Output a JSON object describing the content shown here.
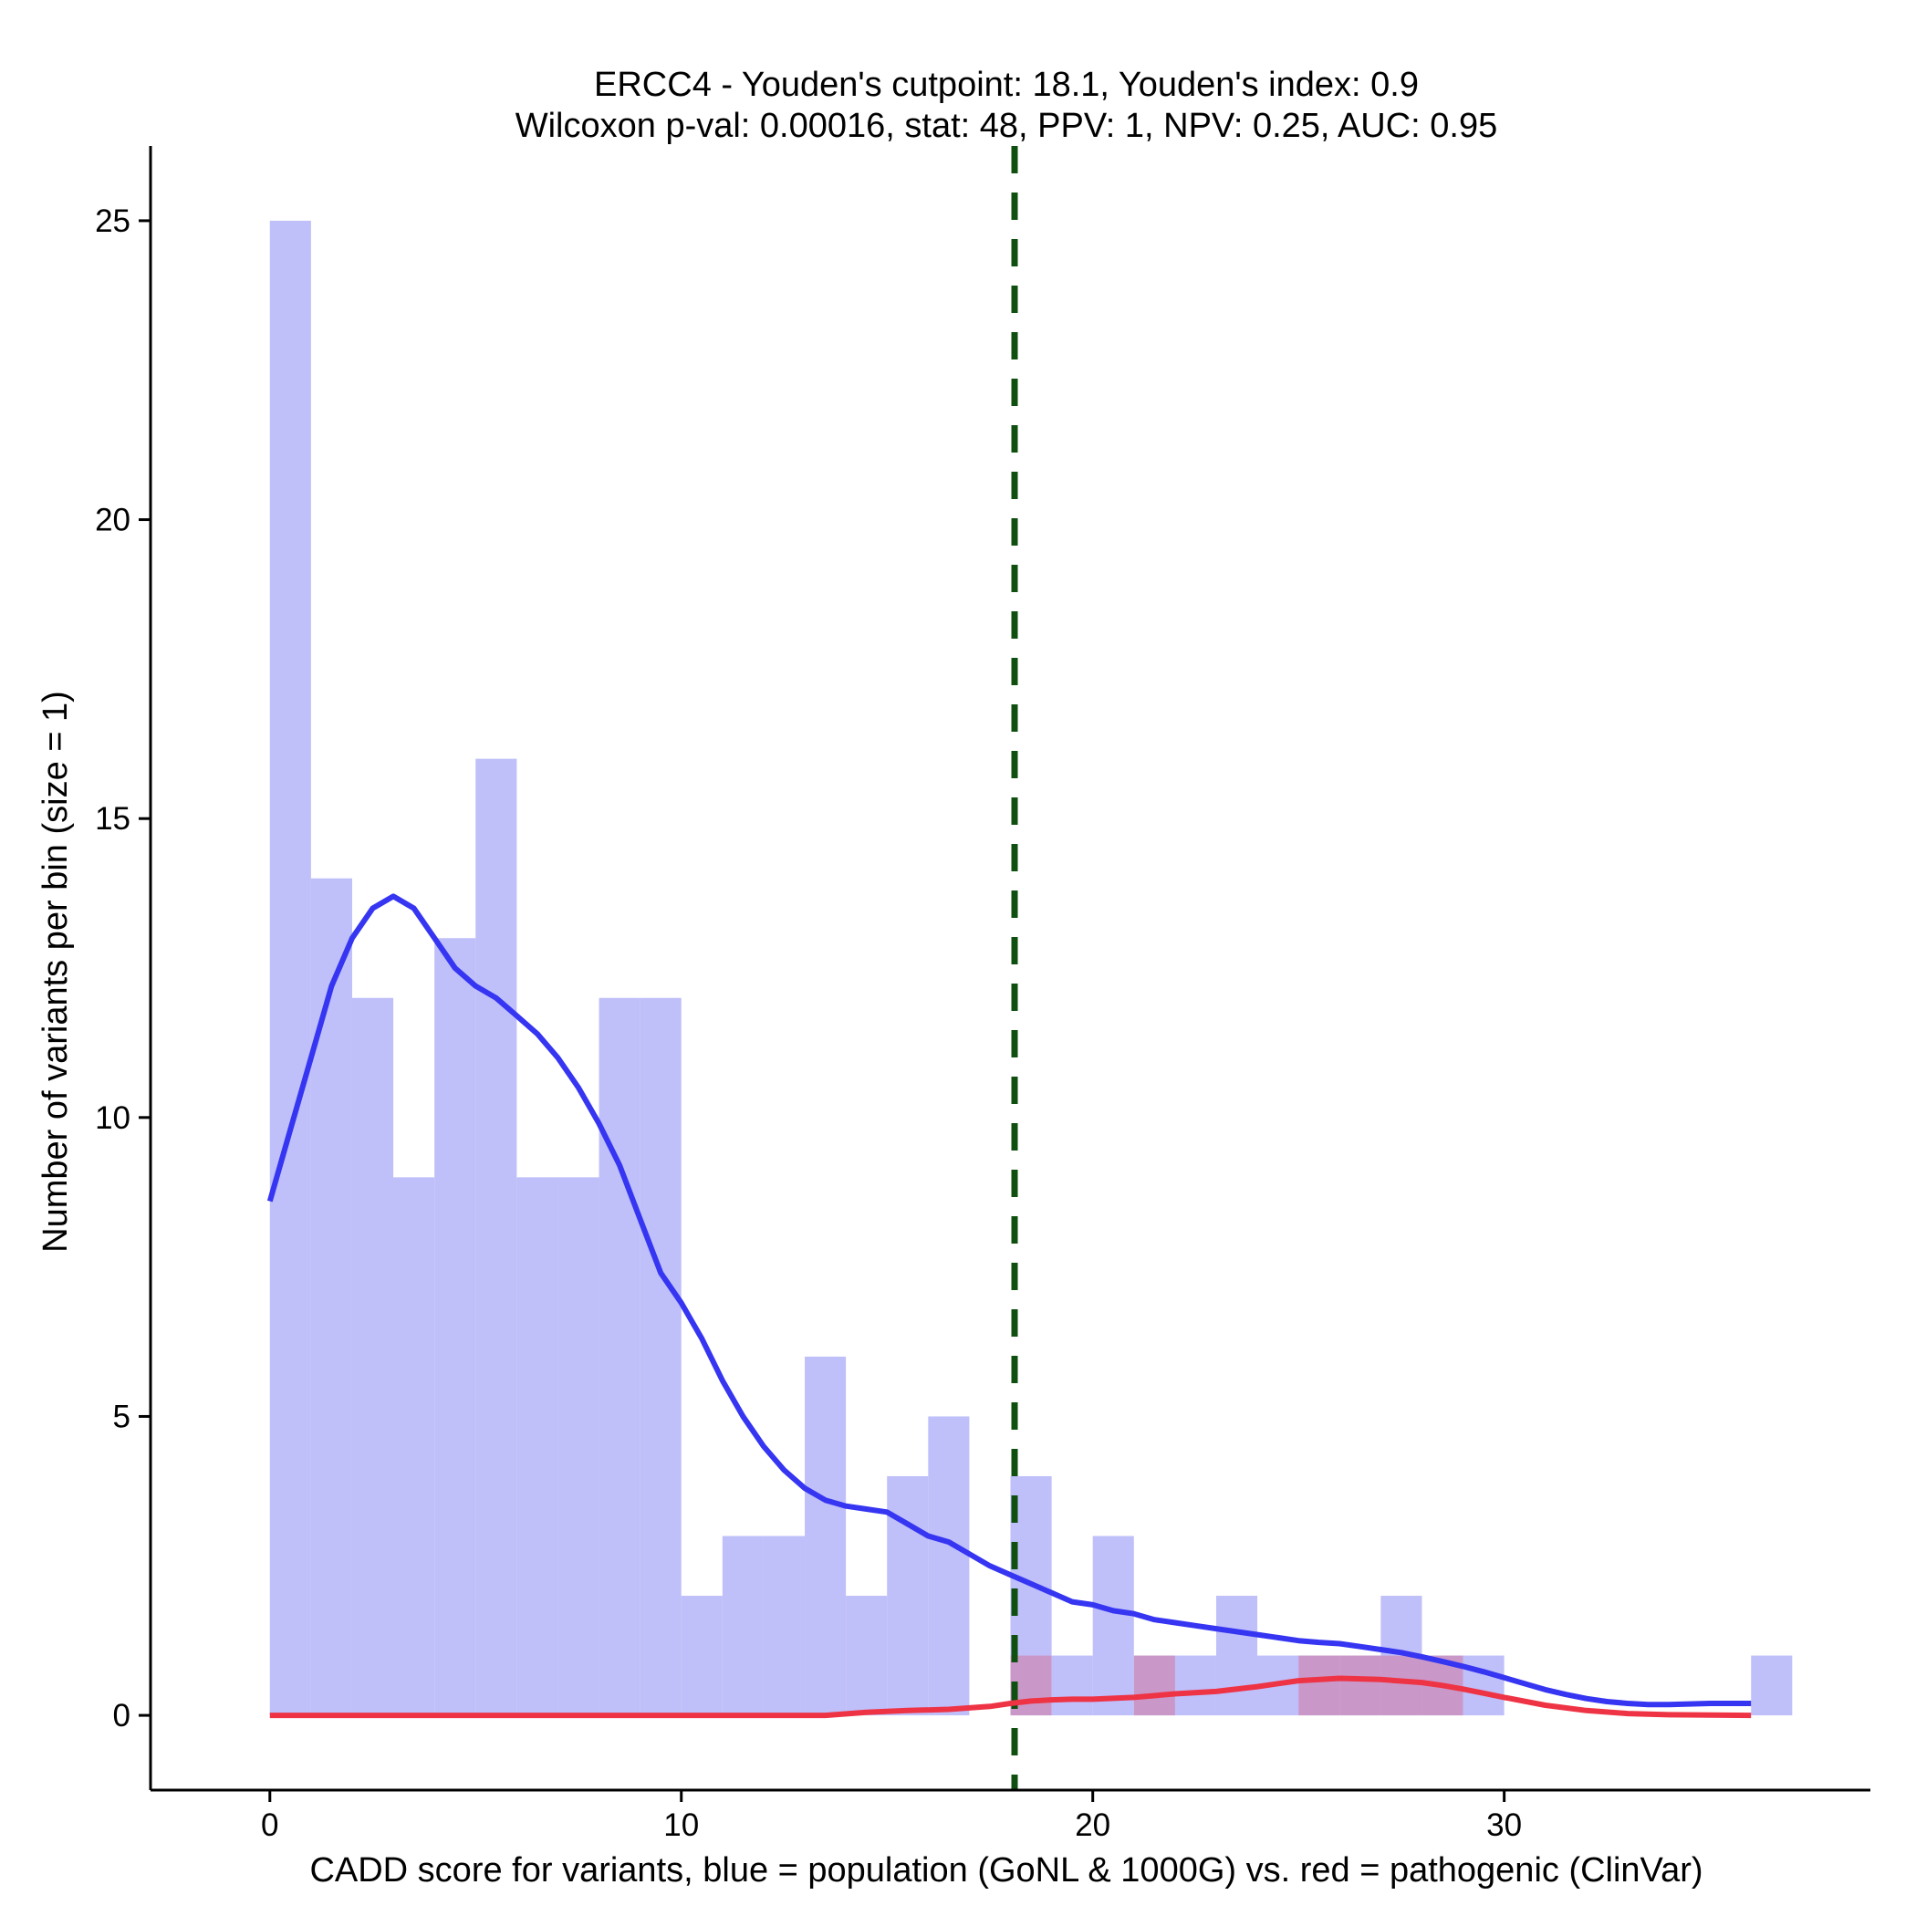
{
  "chart_data": {
    "type": "bar",
    "title_line1": "ERCC4 - Youden's cutpoint: 18.1, Youden's index: 0.9",
    "title_line2": "Wilcoxon p-val: 0.00016, stat: 48, PPV: 1, NPV: 0.25, AUC: 0.95",
    "xlabel": "CADD score for variants, blue = population (GoNL & 1000G) vs. red = pathogenic (ClinVar)",
    "ylabel": "Number of variants per bin (size = 1)",
    "xlim": [
      -2.9,
      38.9
    ],
    "ylim": [
      -1.25,
      26.25
    ],
    "x_ticks": [
      0,
      10,
      20,
      30
    ],
    "y_ticks": [
      0,
      5,
      10,
      15,
      20,
      25
    ],
    "bin_width": 1,
    "cutpoint": 18.1,
    "colors": {
      "population_fill": "#bfbffa",
      "pathogenic_fill": "#cd8fbc",
      "population_line": "#3535f2",
      "pathogenic_line": "#ee3344",
      "cutpoint_line": "#0f4f0f"
    },
    "series": [
      {
        "kind": "histogram",
        "bins": [
          {
            "x": 0,
            "count": 25
          },
          {
            "x": 1,
            "count": 14
          },
          {
            "x": 2,
            "count": 12
          },
          {
            "x": 3,
            "count": 9
          },
          {
            "x": 4,
            "count": 13
          },
          {
            "x": 5,
            "count": 16
          },
          {
            "x": 6,
            "count": 9
          },
          {
            "x": 7,
            "count": 9
          },
          {
            "x": 8,
            "count": 12
          },
          {
            "x": 9,
            "count": 12
          },
          {
            "x": 10,
            "count": 2
          },
          {
            "x": 11,
            "count": 3
          },
          {
            "x": 12,
            "count": 3
          },
          {
            "x": 13,
            "count": 6
          },
          {
            "x": 14,
            "count": 2
          },
          {
            "x": 15,
            "count": 4
          },
          {
            "x": 16,
            "count": 5
          },
          {
            "x": 18,
            "count": 4
          },
          {
            "x": 19,
            "count": 1
          },
          {
            "x": 20,
            "count": 3
          },
          {
            "x": 21,
            "count": 1
          },
          {
            "x": 22,
            "count": 1
          },
          {
            "x": 23,
            "count": 2
          },
          {
            "x": 24,
            "count": 1
          },
          {
            "x": 25,
            "count": 1
          },
          {
            "x": 26,
            "count": 1
          },
          {
            "x": 27,
            "count": 2
          },
          {
            "x": 28,
            "count": 1
          },
          {
            "x": 29,
            "count": 1
          },
          {
            "x": 36,
            "count": 1
          }
        ]
      },
      {
        "kind": "histogram",
        "bins": [
          {
            "x": 18,
            "count": 1
          },
          {
            "x": 21,
            "count": 1
          },
          {
            "x": 25,
            "count": 1
          },
          {
            "x": 26,
            "count": 1
          },
          {
            "x": 27,
            "count": 1
          },
          {
            "x": 28,
            "count": 1
          }
        ]
      },
      {
        "kind": "density_curve",
        "points": [
          [
            0,
            8.6
          ],
          [
            0.5,
            9.8
          ],
          [
            1,
            11
          ],
          [
            1.5,
            12.2
          ],
          [
            2,
            13
          ],
          [
            2.5,
            13.5
          ],
          [
            3,
            13.7
          ],
          [
            3.5,
            13.5
          ],
          [
            4,
            13
          ],
          [
            4.5,
            12.5
          ],
          [
            5,
            12.2
          ],
          [
            5.5,
            12
          ],
          [
            6,
            11.7
          ],
          [
            6.5,
            11.4
          ],
          [
            7,
            11
          ],
          [
            7.5,
            10.5
          ],
          [
            8,
            9.9
          ],
          [
            8.5,
            9.2
          ],
          [
            9,
            8.3
          ],
          [
            9.5,
            7.4
          ],
          [
            10,
            6.9
          ],
          [
            10.5,
            6.3
          ],
          [
            11,
            5.6
          ],
          [
            11.5,
            5
          ],
          [
            12,
            4.5
          ],
          [
            12.5,
            4.1
          ],
          [
            13,
            3.8
          ],
          [
            13.5,
            3.6
          ],
          [
            14,
            3.5
          ],
          [
            14.5,
            3.45
          ],
          [
            15,
            3.4
          ],
          [
            15.5,
            3.2
          ],
          [
            16,
            3.0
          ],
          [
            16.5,
            2.9
          ],
          [
            17,
            2.7
          ],
          [
            17.5,
            2.5
          ],
          [
            18,
            2.35
          ],
          [
            18.5,
            2.2
          ],
          [
            19,
            2.05
          ],
          [
            19.5,
            1.9
          ],
          [
            20,
            1.85
          ],
          [
            20.5,
            1.75
          ],
          [
            21,
            1.7
          ],
          [
            21.5,
            1.6
          ],
          [
            22,
            1.55
          ],
          [
            22.5,
            1.5
          ],
          [
            23,
            1.45
          ],
          [
            23.5,
            1.4
          ],
          [
            24,
            1.35
          ],
          [
            24.5,
            1.3
          ],
          [
            25,
            1.25
          ],
          [
            25.5,
            1.22
          ],
          [
            26,
            1.2
          ],
          [
            26.5,
            1.15
          ],
          [
            27,
            1.1
          ],
          [
            27.5,
            1.05
          ],
          [
            28,
            0.98
          ],
          [
            28.5,
            0.9
          ],
          [
            29,
            0.82
          ],
          [
            29.5,
            0.73
          ],
          [
            30,
            0.63
          ],
          [
            30.5,
            0.53
          ],
          [
            31,
            0.43
          ],
          [
            31.5,
            0.35
          ],
          [
            32,
            0.28
          ],
          [
            32.5,
            0.23
          ],
          [
            33,
            0.2
          ],
          [
            33.5,
            0.18
          ],
          [
            34,
            0.18
          ],
          [
            34.5,
            0.19
          ],
          [
            35,
            0.2
          ],
          [
            36,
            0.2
          ]
        ]
      },
      {
        "kind": "density_curve",
        "points": [
          [
            0,
            0
          ],
          [
            7,
            0
          ],
          [
            13.5,
            0
          ],
          [
            14.5,
            0.05
          ],
          [
            15.5,
            0.08
          ],
          [
            16.5,
            0.1
          ],
          [
            17.5,
            0.15
          ],
          [
            18,
            0.2
          ],
          [
            18.5,
            0.24
          ],
          [
            19,
            0.26
          ],
          [
            19.5,
            0.27
          ],
          [
            20,
            0.27
          ],
          [
            21,
            0.3
          ],
          [
            22,
            0.36
          ],
          [
            23,
            0.4
          ],
          [
            24,
            0.48
          ],
          [
            25,
            0.58
          ],
          [
            26,
            0.62
          ],
          [
            27,
            0.6
          ],
          [
            28,
            0.55
          ],
          [
            28.5,
            0.5
          ],
          [
            29,
            0.44
          ],
          [
            29.5,
            0.37
          ],
          [
            30,
            0.3
          ],
          [
            31,
            0.17
          ],
          [
            32,
            0.08
          ],
          [
            33,
            0.03
          ],
          [
            34,
            0.01
          ],
          [
            36,
            0
          ]
        ]
      }
    ]
  }
}
